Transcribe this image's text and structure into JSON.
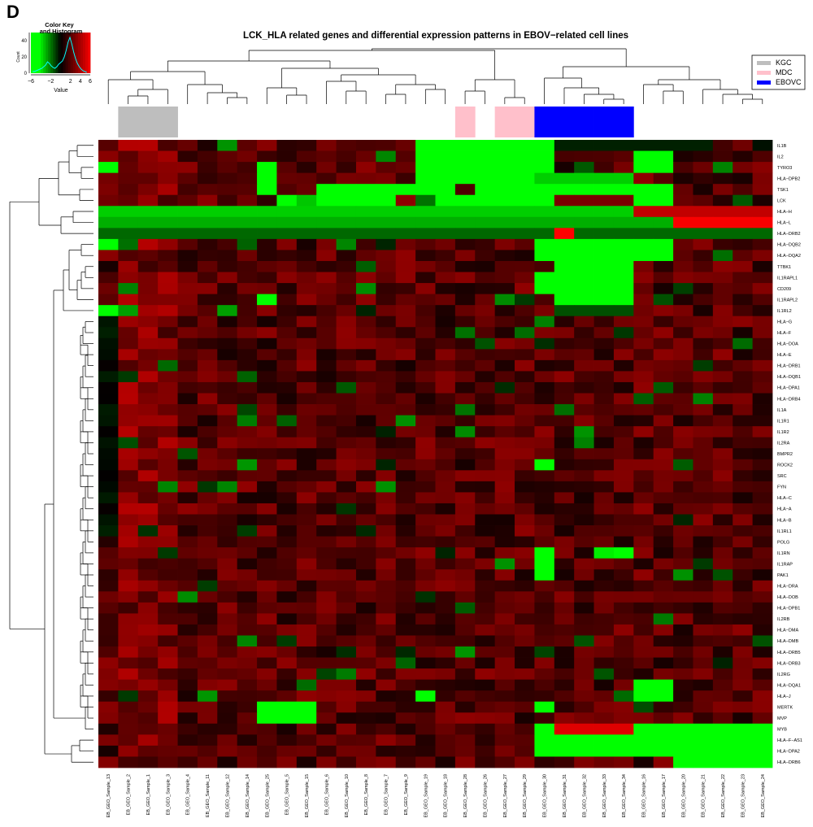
{
  "panel_label": "D",
  "chart_data": {
    "type": "heatmap",
    "title": "LCK_HLA related genes and differential expression patterns in EBOV−related cell lines",
    "color_key": {
      "title_line1": "Color Key",
      "title_line2": "and Histogram",
      "ylabel": "Count",
      "xlabel": "Value",
      "x_ticks": [
        "−6",
        "−2",
        "2",
        "4",
        "6"
      ],
      "y_ticks": [
        "0",
        "20",
        "40"
      ],
      "colors": {
        "low": "#00ff00",
        "mid": "#000000",
        "high": "#ff0000",
        "histogram": "#00ffff"
      }
    },
    "legend": {
      "position": "top-right",
      "entries": [
        {
          "label": "KGC",
          "color": "#bebebe"
        },
        {
          "label": "MDC",
          "color": "#ffc0cb"
        },
        {
          "label": "EBOVC",
          "color": "#0000ff"
        }
      ]
    },
    "columns": [
      "EB_GEO_Sample_13",
      "EB_GEO_Sample_2",
      "EB_GEO_Sample_1",
      "EB_GEO_Sample_3",
      "EB_GEO_Sample_4",
      "EB_GEO_Sample_11",
      "EB_GEO_Sample_12",
      "EB_GEO_Sample_14",
      "EB_GEO_Sample_25",
      "EB_GEO_Sample_5",
      "EB_GEO_Sample_15",
      "EB_GEO_Sample_6",
      "EB_GEO_Sample_10",
      "EB_GEO_Sample_8",
      "EB_GEO_Sample_7",
      "EB_GEO_Sample_9",
      "EB_GEO_Sample_19",
      "EB_GEO_Sample_18",
      "EB_GEO_Sample_28",
      "EB_GEO_Sample_26",
      "EB_GEO_Sample_27",
      "EB_GEO_Sample_29",
      "EB_GEO_Sample_30",
      "EB_GEO_Sample_31",
      "EB_GEO_Sample_32",
      "EB_GEO_Sample_33",
      "EB_GEO_Sample_34",
      "EB_GEO_Sample_16",
      "EB_GEO_Sample_17",
      "EB_GEO_Sample_20",
      "EB_GEO_Sample_21",
      "EB_GEO_Sample_22",
      "EB_GEO_Sample_23",
      "EB_GEO_Sample_24"
    ],
    "column_groups": [
      "none",
      "KGC",
      "KGC",
      "KGC",
      "none",
      "none",
      "none",
      "none",
      "none",
      "none",
      "none",
      "none",
      "none",
      "none",
      "none",
      "none",
      "none",
      "none",
      "MDC",
      "none",
      "MDC",
      "MDC",
      "EBOVC",
      "EBOVC",
      "EBOVC",
      "EBOVC",
      "EBOVC",
      "none",
      "none",
      "none",
      "none",
      "none",
      "none",
      "none"
    ],
    "rows": [
      "IL1B",
      "IL2",
      "TYRO3",
      "HLA−DPB2",
      "TSK1",
      "LCK",
      "HLA−H",
      "HLA−L",
      "HLA−DRB2",
      "HLA−DQB2",
      "HLA−DQA2",
      "TTBK1",
      "IL1RAPL1",
      "CD209",
      "IL1RAPL2",
      "IL1RL2",
      "HLA−G",
      "HLA−F",
      "HLA−DOA",
      "HLA−E",
      "HLA−DRB1",
      "HLA−DQB1",
      "HLA−DPA1",
      "HLA−DRB4",
      "IL1A",
      "IL1R1",
      "IL1R2",
      "IL2RA",
      "BMPR2",
      "ROCK2",
      "SRC",
      "FYN",
      "HLA−C",
      "HLA−A",
      "HLA−B",
      "IL1RL1",
      "POLG",
      "IL1RN",
      "IL1RAP",
      "PAK1",
      "HLA−DRA",
      "HLA−DOB",
      "HLA−DPB1",
      "IL2RB",
      "HLA−DMA",
      "HLA−DMB",
      "HLA−DRB5",
      "HLA−DRB3",
      "IL2RG",
      "HLA−DQA1",
      "HLA−J",
      "MERTK",
      "MVP",
      "MYB",
      "HLA−F−AS1",
      "HLA−DPA2",
      "HLA−DRB6"
    ],
    "value_range": [
      -6,
      6
    ]
  }
}
